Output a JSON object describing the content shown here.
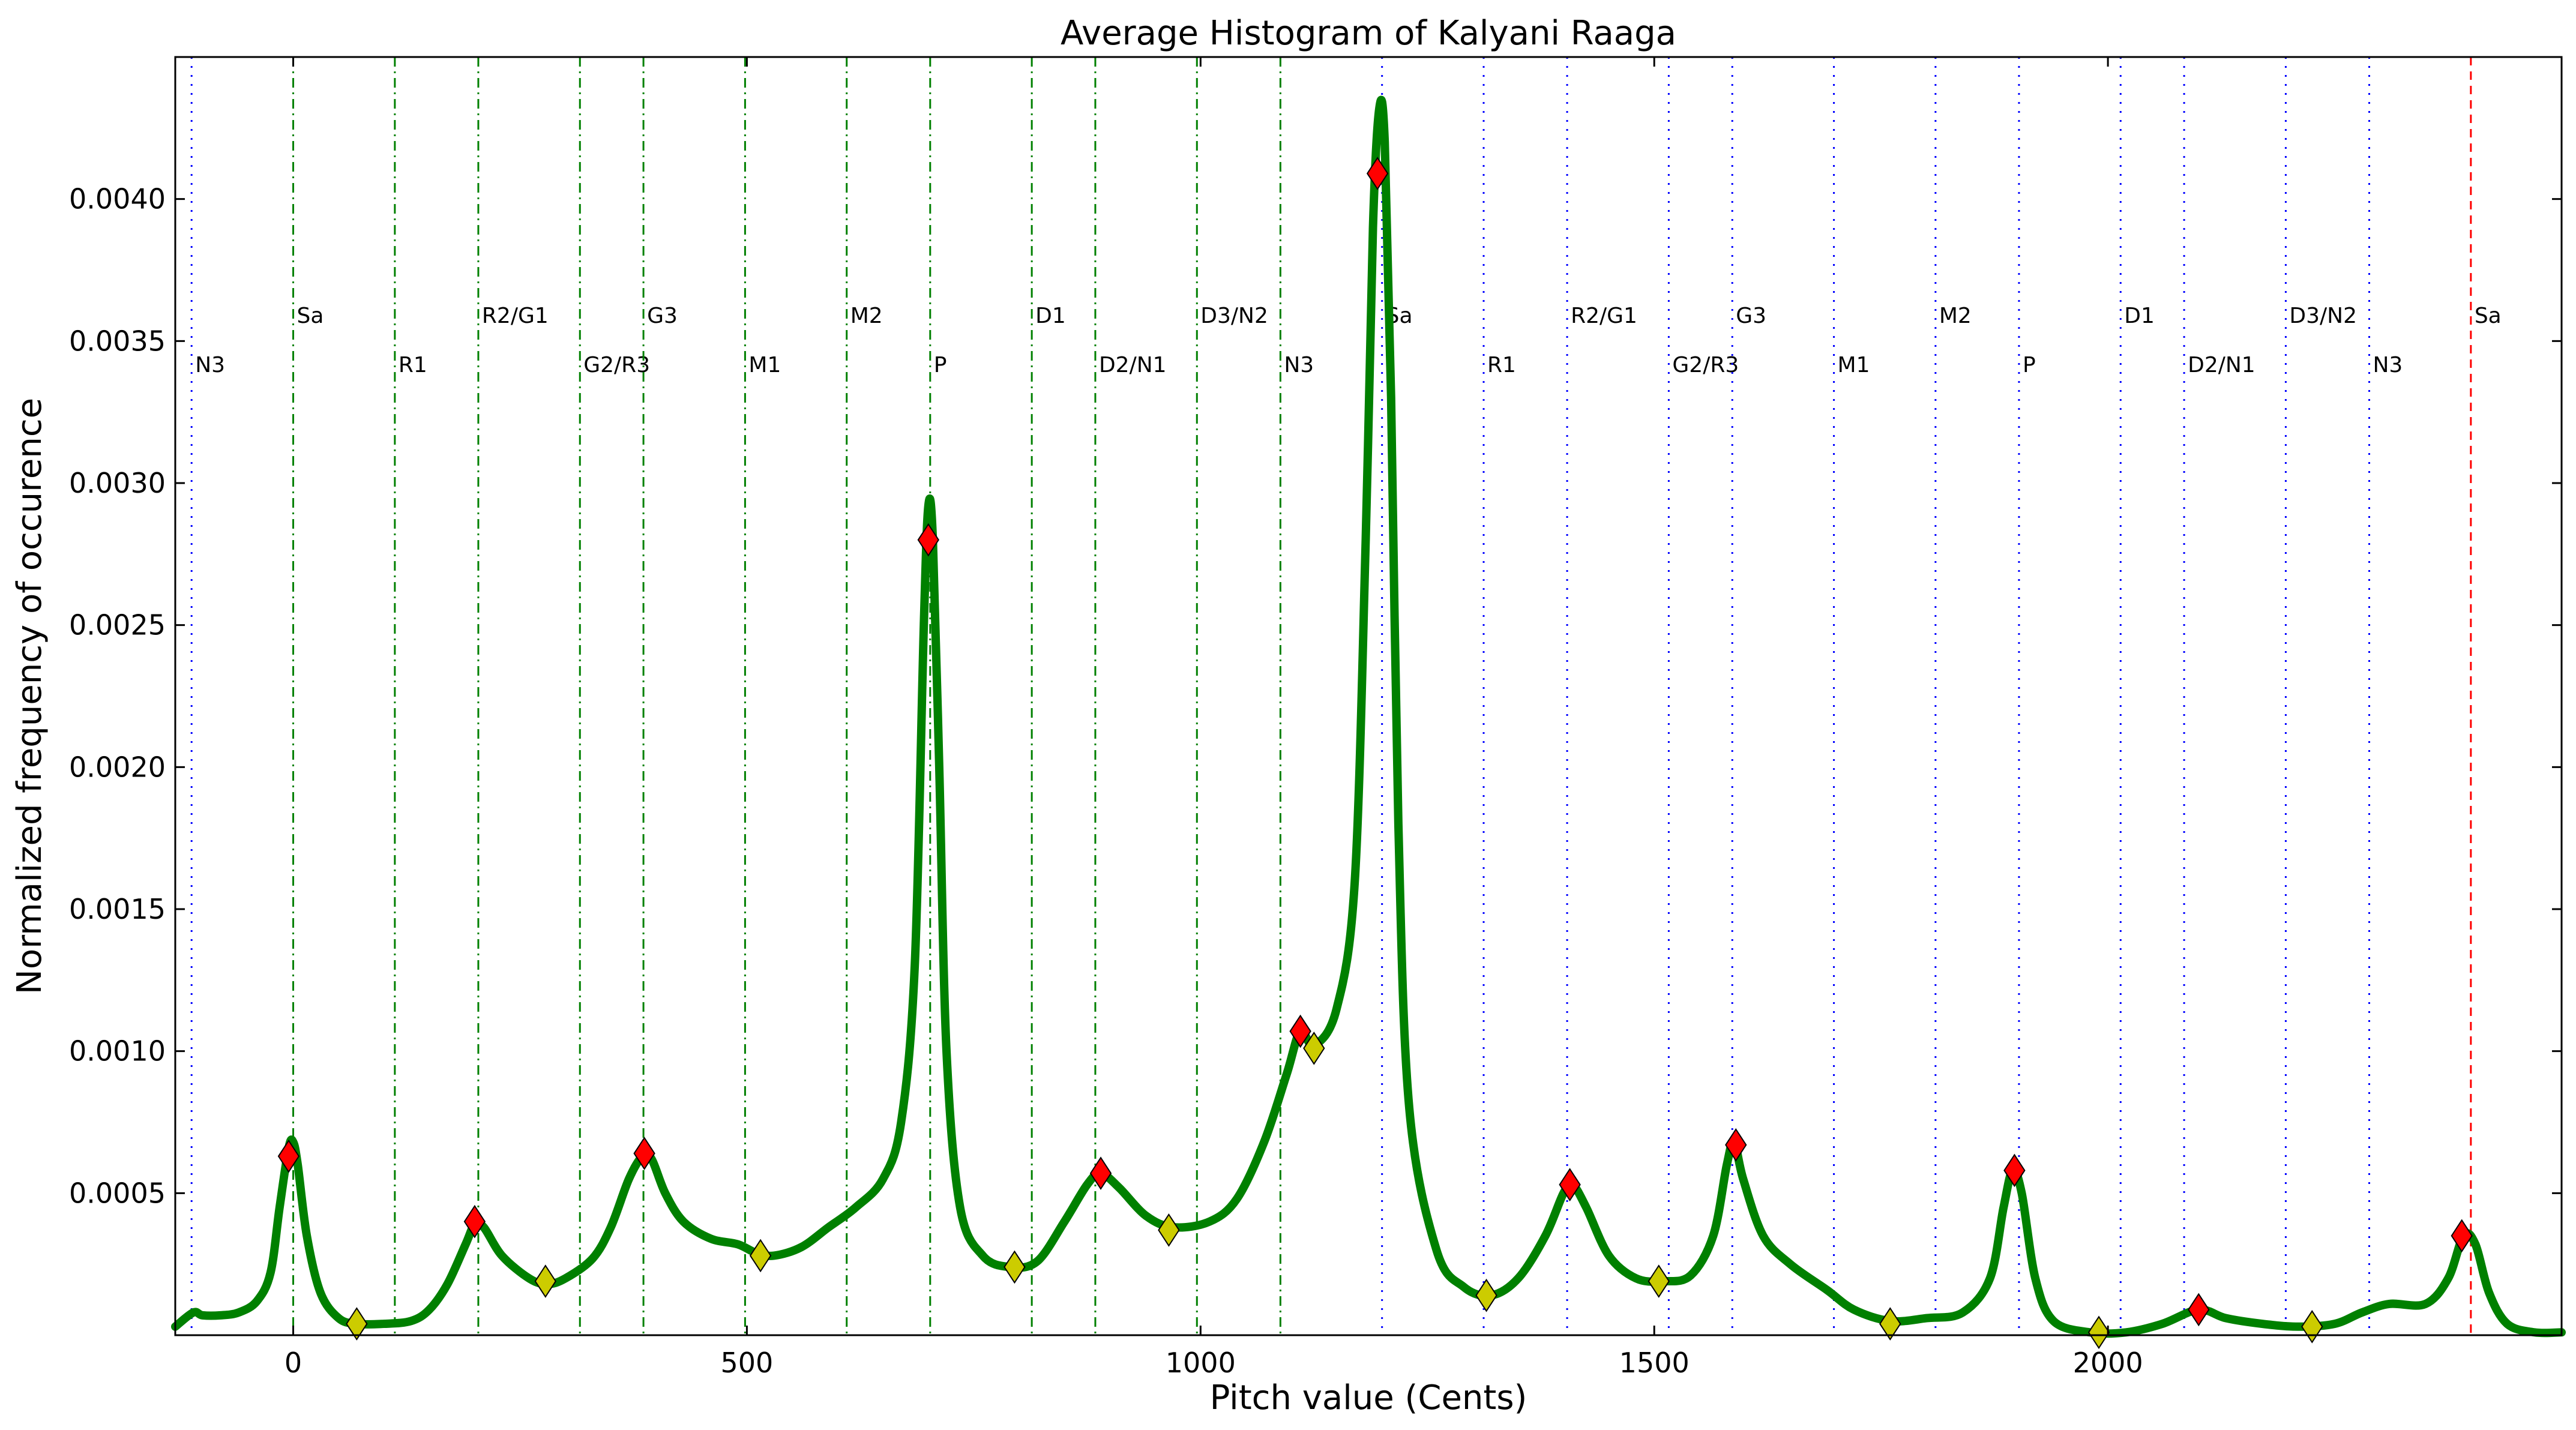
{
  "chart_data": {
    "type": "line",
    "title": "Average Histogram of Kalyani Raaga",
    "xlabel": "Pitch value (Cents)",
    "ylabel": "Normalized frequency of occurence",
    "xlim": [
      -130,
      2500
    ],
    "ylim": [
      0,
      0.0045
    ],
    "xticks": [
      {
        "value": 0,
        "label": "0"
      },
      {
        "value": 500,
        "label": "500"
      },
      {
        "value": 1000,
        "label": "1000"
      },
      {
        "value": 1500,
        "label": "1500"
      },
      {
        "value": 2000,
        "label": "2000"
      }
    ],
    "yticks": [
      {
        "value": 0.0005,
        "label": "0.0005"
      },
      {
        "value": 0.001,
        "label": "0.0010"
      },
      {
        "value": 0.0015,
        "label": "0.0015"
      },
      {
        "value": 0.002,
        "label": "0.0020"
      },
      {
        "value": 0.0025,
        "label": "0.0025"
      },
      {
        "value": 0.003,
        "label": "0.0030"
      },
      {
        "value": 0.0035,
        "label": "0.0035"
      },
      {
        "value": 0.004,
        "label": "0.0040"
      }
    ],
    "grid": false,
    "curve": {
      "color": "#008000",
      "points": [
        [
          -130,
          3e-05
        ],
        [
          -110,
          8e-05
        ],
        [
          -100,
          7e-05
        ],
        [
          -80,
          7e-05
        ],
        [
          -60,
          8e-05
        ],
        [
          -40,
          0.00012
        ],
        [
          -25,
          0.00022
        ],
        [
          -15,
          0.00045
        ],
        [
          -5,
          0.00066
        ],
        [
          0,
          0.00068
        ],
        [
          5,
          0.0006
        ],
        [
          15,
          0.00035
        ],
        [
          30,
          0.00015
        ],
        [
          50,
          6e-05
        ],
        [
          70,
          4e-05
        ],
        [
          100,
          4e-05
        ],
        [
          130,
          5e-05
        ],
        [
          150,
          9e-05
        ],
        [
          170,
          0.00018
        ],
        [
          190,
          0.00032
        ],
        [
          200,
          0.00039
        ],
        [
          210,
          0.00038
        ],
        [
          230,
          0.00028
        ],
        [
          260,
          0.0002
        ],
        [
          280,
          0.00018
        ],
        [
          300,
          0.0002
        ],
        [
          330,
          0.00027
        ],
        [
          350,
          0.00038
        ],
        [
          370,
          0.00055
        ],
        [
          385,
          0.00063
        ],
        [
          395,
          0.00062
        ],
        [
          410,
          0.0005
        ],
        [
          430,
          0.0004
        ],
        [
          460,
          0.00034
        ],
        [
          490,
          0.00032
        ],
        [
          510,
          0.00029
        ],
        [
          530,
          0.00028
        ],
        [
          560,
          0.00031
        ],
        [
          590,
          0.00038
        ],
        [
          620,
          0.00045
        ],
        [
          650,
          0.00055
        ],
        [
          670,
          0.00075
        ],
        [
          685,
          0.0013
        ],
        [
          695,
          0.0025
        ],
        [
          700,
          0.00292
        ],
        [
          705,
          0.0028
        ],
        [
          712,
          0.002
        ],
        [
          720,
          0.001
        ],
        [
          735,
          0.00045
        ],
        [
          760,
          0.00028
        ],
        [
          790,
          0.00024
        ],
        [
          820,
          0.00026
        ],
        [
          850,
          0.0004
        ],
        [
          875,
          0.00053
        ],
        [
          890,
          0.00057
        ],
        [
          910,
          0.00052
        ],
        [
          940,
          0.00042
        ],
        [
          970,
          0.00038
        ],
        [
          1010,
          0.0004
        ],
        [
          1040,
          0.00048
        ],
        [
          1070,
          0.00068
        ],
        [
          1095,
          0.00092
        ],
        [
          1110,
          0.00107
        ],
        [
          1125,
          0.00102
        ],
        [
          1150,
          0.00115
        ],
        [
          1170,
          0.0016
        ],
        [
          1182,
          0.0028
        ],
        [
          1190,
          0.0039
        ],
        [
          1197,
          0.00432
        ],
        [
          1203,
          0.0042
        ],
        [
          1210,
          0.0033
        ],
        [
          1218,
          0.0018
        ],
        [
          1230,
          0.0008
        ],
        [
          1260,
          0.0003
        ],
        [
          1290,
          0.00017
        ],
        [
          1320,
          0.00014
        ],
        [
          1350,
          0.0002
        ],
        [
          1380,
          0.00035
        ],
        [
          1400,
          0.0005
        ],
        [
          1410,
          0.00053
        ],
        [
          1425,
          0.00045
        ],
        [
          1450,
          0.00028
        ],
        [
          1480,
          0.0002
        ],
        [
          1510,
          0.00019
        ],
        [
          1540,
          0.00021
        ],
        [
          1565,
          0.00035
        ],
        [
          1580,
          0.0006
        ],
        [
          1588,
          0.00068
        ],
        [
          1598,
          0.00055
        ],
        [
          1620,
          0.00035
        ],
        [
          1650,
          0.00025
        ],
        [
          1690,
          0.00016
        ],
        [
          1720,
          9e-05
        ],
        [
          1760,
          5e-05
        ],
        [
          1800,
          6e-05
        ],
        [
          1840,
          8e-05
        ],
        [
          1870,
          0.0002
        ],
        [
          1885,
          0.00045
        ],
        [
          1895,
          0.00058
        ],
        [
          1905,
          0.0005
        ],
        [
          1920,
          0.0002
        ],
        [
          1940,
          5e-05
        ],
        [
          1980,
          1e-05
        ],
        [
          2020,
          1e-05
        ],
        [
          2060,
          4e-05
        ],
        [
          2100,
          9e-05
        ],
        [
          2130,
          6e-05
        ],
        [
          2170,
          4e-05
        ],
        [
          2210,
          3e-05
        ],
        [
          2250,
          4e-05
        ],
        [
          2280,
          8e-05
        ],
        [
          2310,
          0.00011
        ],
        [
          2350,
          0.00011
        ],
        [
          2375,
          0.0002
        ],
        [
          2392,
          0.00035
        ],
        [
          2405,
          0.00032
        ],
        [
          2420,
          0.00015
        ],
        [
          2440,
          4e-05
        ],
        [
          2470,
          1e-05
        ],
        [
          2500,
          1e-05
        ]
      ]
    },
    "peaks": {
      "color": "#ff0000",
      "points": [
        [
          -5,
          0.00063
        ],
        [
          200,
          0.0004
        ],
        [
          387,
          0.00064
        ],
        [
          700,
          0.0028
        ],
        [
          890,
          0.00057
        ],
        [
          1110,
          0.00107
        ],
        [
          1195,
          0.00409
        ],
        [
          1407,
          0.00053
        ],
        [
          1590,
          0.00067
        ],
        [
          1897,
          0.00058
        ],
        [
          2100,
          9e-05
        ],
        [
          2390,
          0.00035
        ]
      ]
    },
    "valleys": {
      "color": "#cccc00",
      "points": [
        [
          70,
          4e-05
        ],
        [
          278,
          0.00019
        ],
        [
          515,
          0.00028
        ],
        [
          795,
          0.00024
        ],
        [
          965,
          0.00037
        ],
        [
          1125,
          0.00101
        ],
        [
          1315,
          0.00014
        ],
        [
          1505,
          0.00019
        ],
        [
          1760,
          4e-05
        ],
        [
          1990,
          1e-05
        ],
        [
          2225,
          3e-05
        ]
      ]
    },
    "reference_lines": [
      {
        "x": -112,
        "label": "N3",
        "color": "#0000ff",
        "style": "dotted",
        "level": "low"
      },
      {
        "x": 0,
        "label": "Sa",
        "color": "#008000",
        "style": "dashdot",
        "level": "high"
      },
      {
        "x": 112,
        "label": "R1",
        "color": "#008000",
        "style": "dashdot",
        "level": "low"
      },
      {
        "x": 204,
        "label": "R2/G1",
        "color": "#008000",
        "style": "dashdot",
        "level": "high"
      },
      {
        "x": 316,
        "label": "G2/R3",
        "color": "#008000",
        "style": "dashdot",
        "level": "low"
      },
      {
        "x": 386,
        "label": "G3",
        "color": "#008000",
        "style": "dashdot",
        "level": "high"
      },
      {
        "x": 498,
        "label": "M1",
        "color": "#008000",
        "style": "dashdot",
        "level": "low"
      },
      {
        "x": 610,
        "label": "M2",
        "color": "#008000",
        "style": "dashdot",
        "level": "high"
      },
      {
        "x": 702,
        "label": "P",
        "color": "#008000",
        "style": "dashdot",
        "level": "low"
      },
      {
        "x": 814,
        "label": "D1",
        "color": "#008000",
        "style": "dashdot",
        "level": "high"
      },
      {
        "x": 884,
        "label": "D2/N1",
        "color": "#008000",
        "style": "dashdot",
        "level": "low"
      },
      {
        "x": 996,
        "label": "D3/N2",
        "color": "#008000",
        "style": "dashdot",
        "level": "high"
      },
      {
        "x": 1088,
        "label": "N3",
        "color": "#008000",
        "style": "dashdot",
        "level": "low"
      },
      {
        "x": 1200,
        "label": "Sa",
        "color": "#0000ff",
        "style": "dotted",
        "level": "high"
      },
      {
        "x": 1312,
        "label": "R1",
        "color": "#0000ff",
        "style": "dotted",
        "level": "low"
      },
      {
        "x": 1404,
        "label": "R2/G1",
        "color": "#0000ff",
        "style": "dotted",
        "level": "high"
      },
      {
        "x": 1516,
        "label": "G2/R3",
        "color": "#0000ff",
        "style": "dotted",
        "level": "low"
      },
      {
        "x": 1586,
        "label": "G3",
        "color": "#0000ff",
        "style": "dotted",
        "level": "high"
      },
      {
        "x": 1698,
        "label": "M1",
        "color": "#0000ff",
        "style": "dotted",
        "level": "low"
      },
      {
        "x": 1810,
        "label": "M2",
        "color": "#0000ff",
        "style": "dotted",
        "level": "high"
      },
      {
        "x": 1902,
        "label": "P",
        "color": "#0000ff",
        "style": "dotted",
        "level": "low"
      },
      {
        "x": 2014,
        "label": "D1",
        "color": "#0000ff",
        "style": "dotted",
        "level": "high"
      },
      {
        "x": 2084,
        "label": "D2/N1",
        "color": "#0000ff",
        "style": "dotted",
        "level": "low"
      },
      {
        "x": 2196,
        "label": "D3/N2",
        "color": "#0000ff",
        "style": "dotted",
        "level": "high"
      },
      {
        "x": 2288,
        "label": "N3",
        "color": "#0000ff",
        "style": "dotted",
        "level": "low"
      },
      {
        "x": 2400,
        "label": "Sa",
        "color": "#ff0000",
        "style": "dashed",
        "level": "high"
      }
    ]
  }
}
